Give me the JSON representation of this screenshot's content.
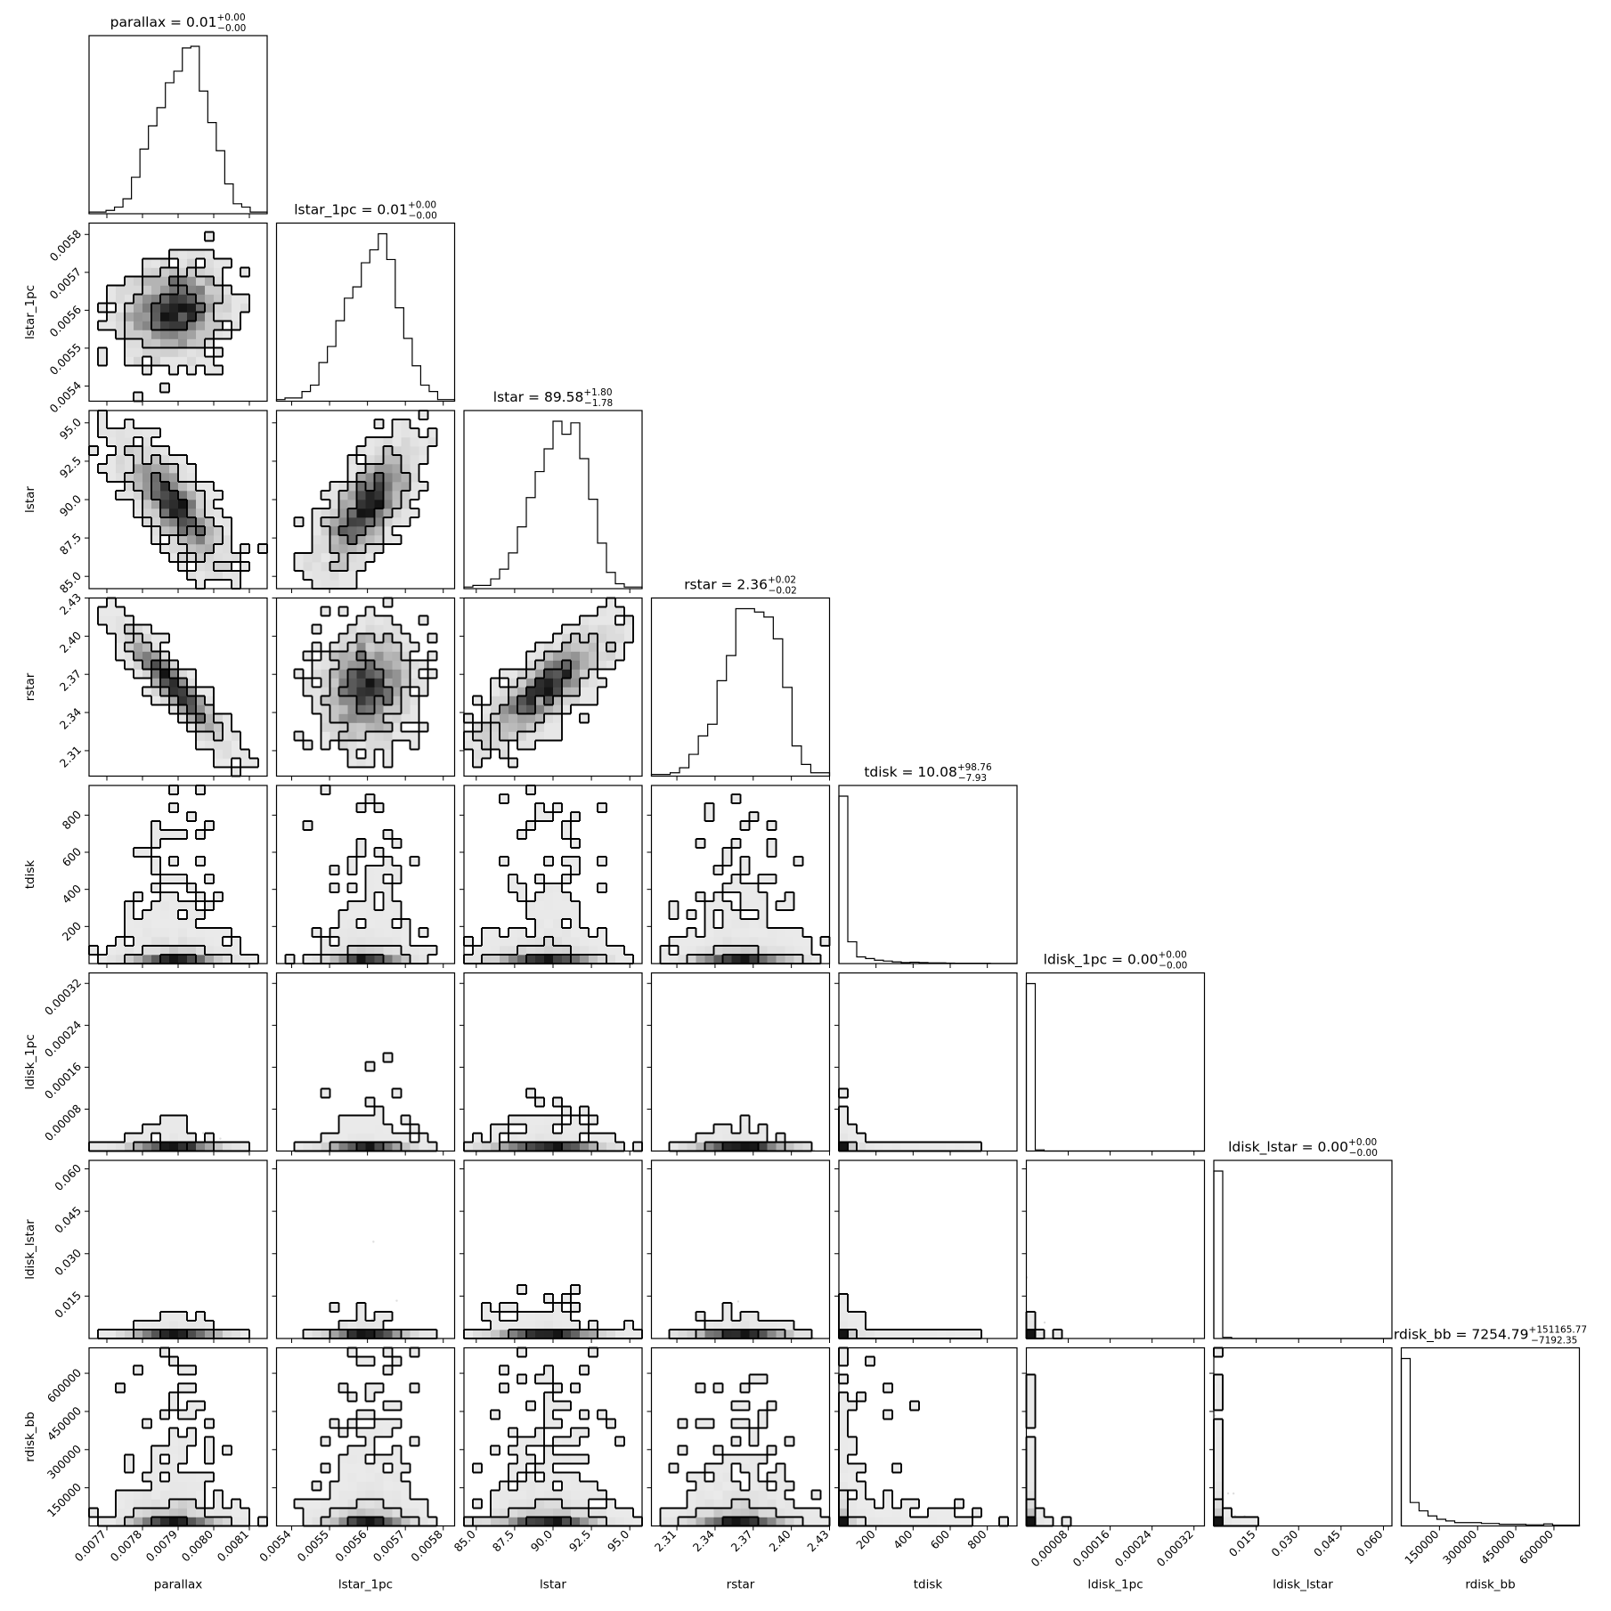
{
  "chart_data": {
    "type": "corner",
    "parameters": [
      {
        "name": "parallax",
        "label": "parallax",
        "title_prefix": "parallax = 0.01",
        "err_plus": "+0.00",
        "err_minus": "−0.00",
        "range": [
          0.00765,
          0.00815
        ],
        "ticks": [
          0.0077,
          0.0078,
          0.0079,
          0.008,
          0.0081
        ],
        "tick_labels": [
          "0.0077",
          "0.0078",
          "0.0079",
          "0.0080",
          "0.0081"
        ],
        "dist": "normal",
        "center": 0.00789,
        "sigma": 6.5e-05,
        "hist": [
          1,
          1,
          2,
          4,
          9,
          22,
          39,
          53,
          64,
          79,
          86,
          100,
          101,
          74,
          55,
          38,
          18,
          6,
          4,
          1,
          1
        ]
      },
      {
        "name": "lstar_1pc",
        "label": "lstar_1pc",
        "title_prefix": "lstar_1pc = 0.01",
        "err_plus": "+0.00",
        "err_minus": "−0.00",
        "range": [
          0.00536,
          0.00583
        ],
        "ticks": [
          0.0054,
          0.0055,
          0.0056,
          0.0057,
          0.0058
        ],
        "tick_labels": [
          "0.0054",
          "0.0055",
          "0.0056",
          "0.0057",
          "0.0058"
        ],
        "dist": "normal",
        "center": 0.0056,
        "sigma": 5.5e-05,
        "hist": [
          1,
          2,
          2,
          6,
          10,
          24,
          34,
          50,
          64,
          71,
          86,
          94,
          104,
          88,
          58,
          39,
          22,
          10,
          6,
          1,
          1
        ]
      },
      {
        "name": "lstar",
        "label": "lstar",
        "title_prefix": "lstar = 89.58",
        "err_plus": "+1.80",
        "err_minus": "−1.78",
        "range": [
          84.2,
          95.8
        ],
        "ticks": [
          85.0,
          87.5,
          90.0,
          92.5,
          95.0
        ],
        "tick_labels": [
          "85.0",
          "87.5",
          "90.0",
          "92.5",
          "95.0"
        ],
        "dist": "normal",
        "center": 89.58,
        "sigma": 1.8,
        "hist": [
          1,
          2,
          2,
          6,
          12,
          22,
          38,
          56,
          72,
          86,
          103,
          95,
          102,
          80,
          55,
          28,
          10,
          3,
          1,
          1
        ]
      },
      {
        "name": "rstar",
        "label": "rstar",
        "title_prefix": "rstar = 2.36",
        "err_plus": "+0.02",
        "err_minus": "−0.02",
        "range": [
          2.29,
          2.43
        ],
        "ticks": [
          2.31,
          2.34,
          2.37,
          2.4,
          2.43
        ],
        "tick_labels": [
          "2.31",
          "2.34",
          "2.37",
          "2.40",
          "2.43"
        ],
        "dist": "normal",
        "center": 2.36,
        "sigma": 0.02,
        "hist": [
          1,
          1,
          2,
          5,
          13,
          24,
          31,
          57,
          72,
          100,
          100,
          98,
          95,
          82,
          53,
          18,
          7,
          2,
          2
        ]
      },
      {
        "name": "tdisk",
        "label": "tdisk",
        "title_prefix": "tdisk = 10.08",
        "err_plus": "+98.76",
        "err_minus": "−7.93",
        "range": [
          0,
          960
        ],
        "ticks": [
          200,
          400,
          600,
          800
        ],
        "tick_labels": [
          "200",
          "400",
          "600",
          "800"
        ],
        "dist": "exp",
        "center": 5,
        "sigma": 60,
        "hist": [
          100,
          13,
          4,
          3,
          2,
          1.5,
          1,
          0.6,
          0.8,
          0.6,
          0.4,
          0.4,
          0.3,
          0.2,
          0.2,
          0.2,
          0.2,
          0.1,
          0.1,
          0.1
        ]
      },
      {
        "name": "ldisk_1pc",
        "label": "ldisk_1pc",
        "title_prefix": "ldisk_1pc = 0.00",
        "err_plus": "+0.00",
        "err_minus": "−0.00",
        "range": [
          0,
          0.00034
        ],
        "ticks": [
          8e-05,
          0.00016,
          0.00024,
          0.00032
        ],
        "tick_labels": [
          "0.00008",
          "0.00016",
          "0.00024",
          "0.00032"
        ],
        "dist": "exp",
        "center": 1e-06,
        "sigma": 4e-06,
        "hist": [
          100,
          0.7,
          0,
          0,
          0,
          0,
          0,
          0,
          0,
          0,
          0,
          0,
          0,
          0,
          0,
          0,
          0,
          0,
          0,
          0
        ]
      },
      {
        "name": "ldisk_lstar",
        "label": "ldisk_lstar",
        "title_prefix": "ldisk_lstar = 0.00",
        "err_plus": "+0.00",
        "err_minus": "−0.00",
        "range": [
          0,
          0.063
        ],
        "ticks": [
          0.015,
          0.03,
          0.045,
          0.06
        ],
        "tick_labels": [
          "0.015",
          "0.030",
          "0.045",
          "0.060"
        ],
        "dist": "exp",
        "center": 0.0002,
        "sigma": 0.0008,
        "hist": [
          100,
          0.7,
          0,
          0,
          0,
          0,
          0,
          0,
          0,
          0,
          0,
          0,
          0,
          0,
          0,
          0,
          0,
          0,
          0,
          0
        ]
      },
      {
        "name": "rdisk_bb",
        "label": "rdisk_bb",
        "title_prefix": "rdisk_bb = 7254.79",
        "err_plus": "+151165.77",
        "err_minus": "−7192.35",
        "range": [
          0,
          700000
        ],
        "ticks": [
          150000,
          300000,
          450000,
          600000
        ],
        "tick_labels": [
          "150000",
          "300000",
          "450000",
          "600000"
        ],
        "dist": "exp",
        "center": 4000,
        "sigma": 60000,
        "hist": [
          100,
          14,
          9,
          6,
          4,
          3,
          2,
          2,
          2,
          1.5,
          1.5,
          1,
          1,
          1,
          0.7,
          0.7,
          1.2,
          0.5,
          0.5,
          0.5
        ]
      }
    ],
    "correlations": {
      "1,0": 0.1,
      "2,0": -0.78,
      "2,1": 0.68,
      "3,0": -0.93,
      "3,1": 0.1,
      "3,2": 0.8
    },
    "contour_levels": [
      0.39,
      0.86,
      0.99
    ]
  }
}
